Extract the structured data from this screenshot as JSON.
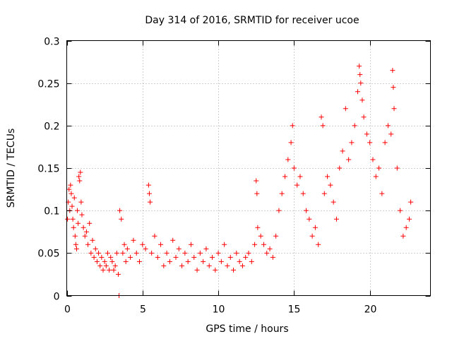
{
  "chart_data": {
    "type": "scatter",
    "title": "Day 314 of 2016, SRMTID for receiver ucoe",
    "xlabel": "GPS time / hours",
    "ylabel": "SRMTID / TECUs",
    "xlim": [
      0,
      24
    ],
    "ylim": [
      0,
      0.3
    ],
    "xticks": [
      0,
      5,
      10,
      15,
      20
    ],
    "xtick_labels": [
      "0",
      "5",
      "10",
      "15",
      "20"
    ],
    "yticks": [
      0,
      0.05,
      0.1,
      0.15,
      0.2,
      0.25,
      0.3
    ],
    "ytick_labels": [
      "0",
      "0.05",
      "0.1",
      "0.15",
      "0.2",
      "0.25",
      "0.3"
    ],
    "grid": true,
    "marker": "+",
    "color": "#ff0000",
    "series": [
      {
        "name": "SRMTID",
        "points": [
          [
            0.05,
            0.09
          ],
          [
            0.1,
            0.11
          ],
          [
            0.15,
            0.125
          ],
          [
            0.2,
            0.1
          ],
          [
            0.25,
            0.13
          ],
          [
            0.3,
            0.12
          ],
          [
            0.35,
            0.105
          ],
          [
            0.4,
            0.09
          ],
          [
            0.45,
            0.08
          ],
          [
            0.5,
            0.115
          ],
          [
            0.55,
            0.07
          ],
          [
            0.6,
            0.06
          ],
          [
            0.65,
            0.055
          ],
          [
            0.7,
            0.1
          ],
          [
            0.75,
            0.085
          ],
          [
            0.8,
            0.14
          ],
          [
            0.85,
            0.135
          ],
          [
            0.9,
            0.145
          ],
          [
            0.95,
            0.11
          ],
          [
            1.0,
            0.095
          ],
          [
            1.1,
            0.08
          ],
          [
            1.2,
            0.07
          ],
          [
            1.3,
            0.075
          ],
          [
            1.4,
            0.06
          ],
          [
            1.5,
            0.085
          ],
          [
            1.6,
            0.05
          ],
          [
            1.7,
            0.065
          ],
          [
            1.8,
            0.045
          ],
          [
            1.9,
            0.055
          ],
          [
            2.0,
            0.04
          ],
          [
            2.1,
            0.05
          ],
          [
            2.2,
            0.035
          ],
          [
            2.3,
            0.045
          ],
          [
            2.4,
            0.03
          ],
          [
            2.5,
            0.04
          ],
          [
            2.6,
            0.035
          ],
          [
            2.7,
            0.05
          ],
          [
            2.8,
            0.03
          ],
          [
            2.9,
            0.045
          ],
          [
            3.0,
            0.04
          ],
          [
            3.1,
            0.03
          ],
          [
            3.2,
            0.035
          ],
          [
            3.3,
            0.05
          ],
          [
            3.4,
            0.025
          ],
          [
            3.45,
            0.0
          ],
          [
            3.5,
            0.1
          ],
          [
            3.6,
            0.09
          ],
          [
            3.7,
            0.05
          ],
          [
            3.8,
            0.06
          ],
          [
            3.9,
            0.04
          ],
          [
            4.0,
            0.055
          ],
          [
            4.2,
            0.045
          ],
          [
            4.4,
            0.065
          ],
          [
            4.6,
            0.05
          ],
          [
            4.8,
            0.04
          ],
          [
            5.0,
            0.06
          ],
          [
            5.2,
            0.055
          ],
          [
            5.4,
            0.13
          ],
          [
            5.45,
            0.12
          ],
          [
            5.5,
            0.11
          ],
          [
            5.6,
            0.05
          ],
          [
            5.8,
            0.07
          ],
          [
            6.0,
            0.045
          ],
          [
            6.2,
            0.06
          ],
          [
            6.4,
            0.035
          ],
          [
            6.6,
            0.05
          ],
          [
            6.8,
            0.04
          ],
          [
            7.0,
            0.065
          ],
          [
            7.2,
            0.045
          ],
          [
            7.4,
            0.055
          ],
          [
            7.6,
            0.035
          ],
          [
            7.8,
            0.05
          ],
          [
            8.0,
            0.04
          ],
          [
            8.2,
            0.06
          ],
          [
            8.4,
            0.045
          ],
          [
            8.6,
            0.03
          ],
          [
            8.8,
            0.05
          ],
          [
            9.0,
            0.04
          ],
          [
            9.2,
            0.055
          ],
          [
            9.4,
            0.035
          ],
          [
            9.6,
            0.045
          ],
          [
            9.8,
            0.03
          ],
          [
            10.0,
            0.05
          ],
          [
            10.2,
            0.04
          ],
          [
            10.4,
            0.06
          ],
          [
            10.6,
            0.035
          ],
          [
            10.8,
            0.045
          ],
          [
            11.0,
            0.03
          ],
          [
            11.2,
            0.05
          ],
          [
            11.4,
            0.04
          ],
          [
            11.6,
            0.035
          ],
          [
            11.8,
            0.045
          ],
          [
            12.0,
            0.05
          ],
          [
            12.2,
            0.04
          ],
          [
            12.4,
            0.06
          ],
          [
            12.5,
            0.135
          ],
          [
            12.55,
            0.12
          ],
          [
            12.6,
            0.08
          ],
          [
            12.8,
            0.07
          ],
          [
            13.0,
            0.06
          ],
          [
            13.2,
            0.05
          ],
          [
            13.4,
            0.055
          ],
          [
            13.6,
            0.045
          ],
          [
            13.8,
            0.07
          ],
          [
            14.0,
            0.1
          ],
          [
            14.2,
            0.12
          ],
          [
            14.4,
            0.14
          ],
          [
            14.6,
            0.16
          ],
          [
            14.8,
            0.18
          ],
          [
            14.9,
            0.2
          ],
          [
            15.0,
            0.15
          ],
          [
            15.2,
            0.13
          ],
          [
            15.4,
            0.14
          ],
          [
            15.6,
            0.12
          ],
          [
            15.8,
            0.1
          ],
          [
            16.0,
            0.09
          ],
          [
            16.2,
            0.07
          ],
          [
            16.4,
            0.08
          ],
          [
            16.6,
            0.06
          ],
          [
            16.8,
            0.21
          ],
          [
            16.9,
            0.2
          ],
          [
            17.0,
            0.12
          ],
          [
            17.2,
            0.14
          ],
          [
            17.4,
            0.13
          ],
          [
            17.6,
            0.11
          ],
          [
            17.8,
            0.09
          ],
          [
            18.0,
            0.15
          ],
          [
            18.2,
            0.17
          ],
          [
            18.4,
            0.22
          ],
          [
            18.6,
            0.16
          ],
          [
            18.8,
            0.18
          ],
          [
            19.0,
            0.2
          ],
          [
            19.2,
            0.24
          ],
          [
            19.3,
            0.27
          ],
          [
            19.35,
            0.26
          ],
          [
            19.4,
            0.25
          ],
          [
            19.5,
            0.23
          ],
          [
            19.6,
            0.21
          ],
          [
            19.8,
            0.19
          ],
          [
            20.0,
            0.18
          ],
          [
            20.2,
            0.16
          ],
          [
            20.4,
            0.14
          ],
          [
            20.6,
            0.15
          ],
          [
            20.8,
            0.12
          ],
          [
            21.0,
            0.18
          ],
          [
            21.2,
            0.2
          ],
          [
            21.4,
            0.19
          ],
          [
            21.5,
            0.265
          ],
          [
            21.55,
            0.245
          ],
          [
            21.6,
            0.22
          ],
          [
            21.8,
            0.15
          ],
          [
            22.0,
            0.1
          ],
          [
            22.2,
            0.07
          ],
          [
            22.4,
            0.08
          ],
          [
            22.6,
            0.09
          ],
          [
            22.7,
            0.11
          ]
        ]
      }
    ]
  },
  "colors": {
    "points": "#ff0000",
    "grid": "#a0a0a0",
    "axes": "#000000"
  }
}
